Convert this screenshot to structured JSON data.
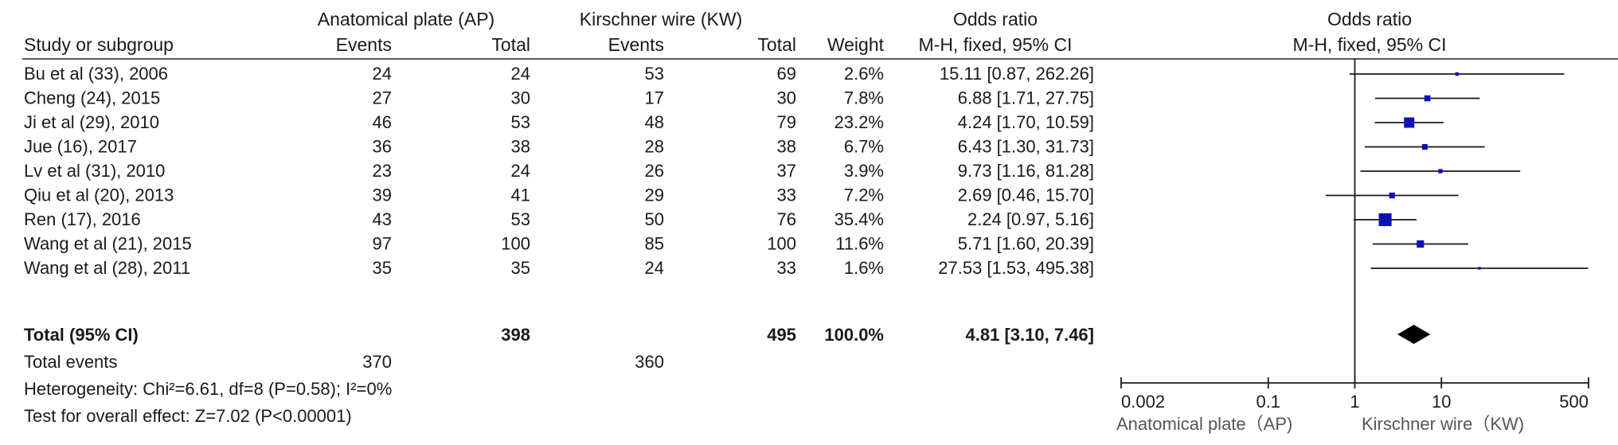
{
  "chart_data": {
    "type": "forest",
    "headers": {
      "study": "Study or subgroup",
      "group1": "Anatomical plate (AP)",
      "group2": "Kirschner wire (KW)",
      "events": "Events",
      "total": "Total",
      "weight": "Weight",
      "or_title": "Odds ratio",
      "or_method": "M-H, fixed, 95% CI"
    },
    "studies": [
      {
        "name": "Bu et al (33), 2006",
        "e1": "24",
        "t1": "24",
        "e2": "53",
        "t2": "69",
        "weight_label": "2.6%",
        "or_label": "15.11 [0.87, 262.26]",
        "weight": 2.6,
        "or": 15.11,
        "lo": 0.87,
        "hi": 262.26
      },
      {
        "name": "Cheng (24), 2015",
        "e1": "27",
        "t1": "30",
        "e2": "17",
        "t2": "30",
        "weight_label": "7.8%",
        "or_label": "6.88 [1.71, 27.75]",
        "weight": 7.8,
        "or": 6.88,
        "lo": 1.71,
        "hi": 27.75
      },
      {
        "name": "Ji et al (29), 2010",
        "e1": "46",
        "t1": "53",
        "e2": "48",
        "t2": "79",
        "weight_label": "23.2%",
        "or_label": "4.24 [1.70, 10.59]",
        "weight": 23.2,
        "or": 4.24,
        "lo": 1.7,
        "hi": 10.59
      },
      {
        "name": "Jue (16), 2017",
        "e1": "36",
        "t1": "38",
        "e2": "28",
        "t2": "38",
        "weight_label": "6.7%",
        "or_label": "6.43 [1.30, 31.73]",
        "weight": 6.7,
        "or": 6.43,
        "lo": 1.3,
        "hi": 31.73
      },
      {
        "name": "Lv et al (31), 2010",
        "e1": "23",
        "t1": "24",
        "e2": "26",
        "t2": "37",
        "weight_label": "3.9%",
        "or_label": "9.73 [1.16, 81.28]",
        "weight": 3.9,
        "or": 9.73,
        "lo": 1.16,
        "hi": 81.28
      },
      {
        "name": "Qiu et al (20), 2013",
        "e1": "39",
        "t1": "41",
        "e2": "29",
        "t2": "33",
        "weight_label": "7.2%",
        "or_label": "2.69 [0.46, 15.70]",
        "weight": 7.2,
        "or": 2.69,
        "lo": 0.46,
        "hi": 15.7
      },
      {
        "name": "Ren (17), 2016",
        "e1": "43",
        "t1": "53",
        "e2": "50",
        "t2": "76",
        "weight_label": "35.4%",
        "or_label": "2.24 [0.97, 5.16]",
        "weight": 35.4,
        "or": 2.24,
        "lo": 0.97,
        "hi": 5.16
      },
      {
        "name": "Wang et al (21), 2015",
        "e1": "97",
        "t1": "100",
        "e2": "85",
        "t2": "100",
        "weight_label": "11.6%",
        "or_label": "5.71 [1.60, 20.39]",
        "weight": 11.6,
        "or": 5.71,
        "lo": 1.6,
        "hi": 20.39
      },
      {
        "name": "Wang et al (28), 2011",
        "e1": "35",
        "t1": "35",
        "e2": "24",
        "t2": "33",
        "weight_label": "1.6%",
        "or_label": "27.53 [1.53, 495.38]",
        "weight": 1.6,
        "or": 27.53,
        "lo": 1.53,
        "hi": 495.38
      }
    ],
    "total": {
      "name": "Total (95% CI)",
      "t1": "398",
      "t2": "495",
      "weight_label": "100.0%",
      "or_label": "4.81 [3.10, 7.46]",
      "or": 4.81,
      "lo": 3.1,
      "hi": 7.46
    },
    "total_events": {
      "label": "Total events",
      "e1": "370",
      "e2": "360"
    },
    "heterogeneity": "Heterogeneity: Chi²=6.61, df=8 (P=0.58); I²=0%",
    "overall_effect": "Test for overall effect: Z=7.02 (P<0.00001)",
    "x_axis": {
      "scale": "log",
      "ticks": [
        0.002,
        0.1,
        1,
        10,
        500
      ],
      "tick_labels": [
        "0.002",
        "0.1",
        "1",
        "10",
        "500"
      ],
      "range": [
        0.002,
        500
      ],
      "reference": 1
    },
    "favours_left": "Anatomical plate（AP)",
    "favours_right": "Kirschner wire（KW)",
    "colors": {
      "square": "#1010b8",
      "diamond": "#000000",
      "line": "#1a1a1a"
    }
  }
}
